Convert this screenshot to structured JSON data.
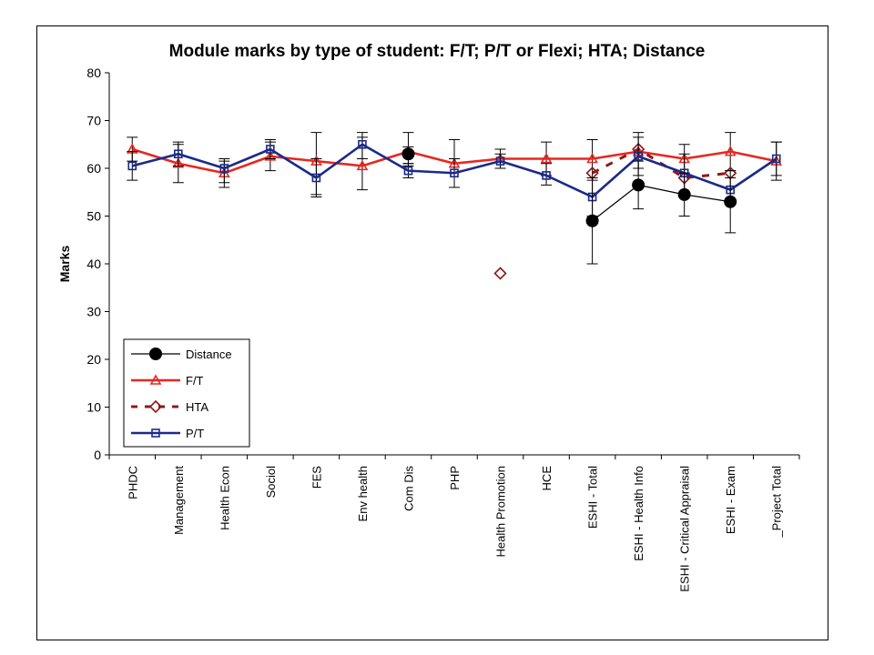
{
  "chart_data": {
    "type": "line",
    "title": "Module marks by type of student: F/T; P/T or Flexi; HTA; Distance",
    "xlabel": "",
    "ylabel": "Marks",
    "ylim": [
      0,
      80
    ],
    "yticks": [
      0,
      10,
      20,
      30,
      40,
      50,
      60,
      70,
      80
    ],
    "grid": false,
    "legend_position": "bottom-left",
    "categories": [
      "PHDC",
      "Management",
      "Health Econ",
      "Sociol",
      "FES",
      "Env health",
      "Com Dis",
      "PHP",
      "Health Promotion",
      "HCE",
      "ESHI - Total",
      "ESHI - Health Info",
      "ESHI - Critical Appraisal",
      "ESHI - Exam",
      "_Project Total"
    ],
    "series": [
      {
        "name": "Distance",
        "color": "#000000",
        "marker": "filled-circle",
        "line": "solid",
        "values": [
          null,
          null,
          null,
          null,
          null,
          null,
          63.0,
          null,
          null,
          null,
          49.0,
          56.5,
          54.5,
          53.0,
          null
        ],
        "err_low": [
          null,
          null,
          null,
          null,
          null,
          null,
          60.5,
          null,
          null,
          null,
          40.0,
          51.5,
          50.0,
          46.5,
          null
        ],
        "err_high": [
          null,
          null,
          null,
          null,
          null,
          null,
          64.5,
          null,
          null,
          null,
          58.0,
          61.5,
          59.0,
          59.5,
          null
        ]
      },
      {
        "name": "F/T",
        "color": "#e8271f",
        "marker": "triangle",
        "line": "solid",
        "values": [
          64.0,
          61.0,
          59.0,
          62.5,
          61.5,
          60.5,
          63.5,
          61.0,
          62.0,
          62.0,
          62.0,
          63.5,
          62.0,
          63.5,
          61.5
        ],
        "err_low": [
          61.5,
          57.0,
          57.0,
          59.5,
          54.5,
          55.5,
          61.0,
          56.0,
          60.0,
          58.5,
          57.5,
          60.0,
          59.0,
          59.5,
          57.5
        ],
        "err_high": [
          66.5,
          65.0,
          61.5,
          65.5,
          67.5,
          66.5,
          67.5,
          66.0,
          64.0,
          65.5,
          66.0,
          67.5,
          65.0,
          67.5,
          65.5
        ]
      },
      {
        "name": "HTA",
        "color": "#8b1a1a",
        "marker": "open-diamond",
        "line": "dashed",
        "values": [
          null,
          null,
          null,
          null,
          null,
          null,
          null,
          null,
          38.0,
          null,
          59.0,
          64.0,
          58.0,
          59.0,
          null
        ]
      },
      {
        "name": "P/T",
        "color": "#1a2a8a",
        "marker": "open-square",
        "line": "solid",
        "values": [
          60.5,
          63.0,
          60.0,
          64.0,
          58.0,
          65.0,
          59.5,
          59.0,
          61.5,
          58.5,
          54.0,
          62.5,
          59.0,
          55.5,
          62.0
        ],
        "err_low": [
          57.5,
          60.5,
          56.0,
          62.0,
          54.0,
          62.0,
          58.0,
          56.0,
          60.0,
          56.5,
          50.0,
          58.5,
          55.0,
          53.5,
          58.5
        ],
        "err_high": [
          63.5,
          65.5,
          62.0,
          66.0,
          62.0,
          67.5,
          61.0,
          62.0,
          63.0,
          61.0,
          58.0,
          66.5,
          63.0,
          58.0,
          65.5
        ]
      }
    ]
  }
}
